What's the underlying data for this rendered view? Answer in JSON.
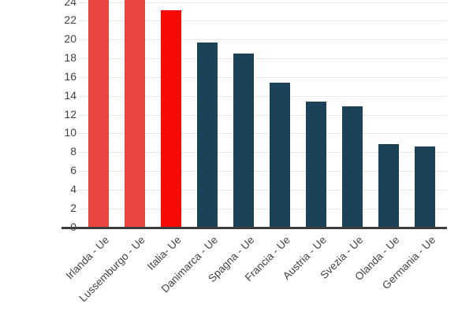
{
  "chart_data": {
    "type": "bar",
    "title": "",
    "xlabel": "",
    "ylabel": "",
    "categories": [
      "Irlanda - Ue",
      "Lussemburgo - Ue",
      "Italia- Ue",
      "Danimarca - Ue",
      "Spagna - Ue",
      "Francia - Ue",
      "Austria - Ue",
      "Svezia - Ue",
      "Olanda - Ue",
      "Germania - Ue"
    ],
    "values": [
      null,
      null,
      23.1,
      19.7,
      18.5,
      15.4,
      13.4,
      12.9,
      8.9,
      8.6
    ],
    "clipped_at_top": [
      true,
      true,
      false,
      false,
      false,
      false,
      false,
      false,
      false,
      false
    ],
    "bar_colors": [
      "#E94641",
      "#E94641",
      "#FA0A05",
      "#1C4257",
      "#1C4257",
      "#1C4257",
      "#1C4257",
      "#1C4257",
      "#1C4257",
      "#1C4257"
    ],
    "yticks": [
      0,
      2,
      4,
      6,
      8,
      10,
      12,
      14,
      16,
      18,
      20,
      22,
      24
    ],
    "ylim_visible": [
      0,
      24.2
    ],
    "grid": true,
    "legend": false,
    "colors": {
      "highlight_light_red": "#E94641",
      "highlight_strong_red": "#FA0A05",
      "bar_default_navy": "#1C4257",
      "gridline": "#E7E7E7",
      "axis_line": "#3D3D3D",
      "tick_label": "#424242",
      "background": "#FFFFFF"
    }
  }
}
